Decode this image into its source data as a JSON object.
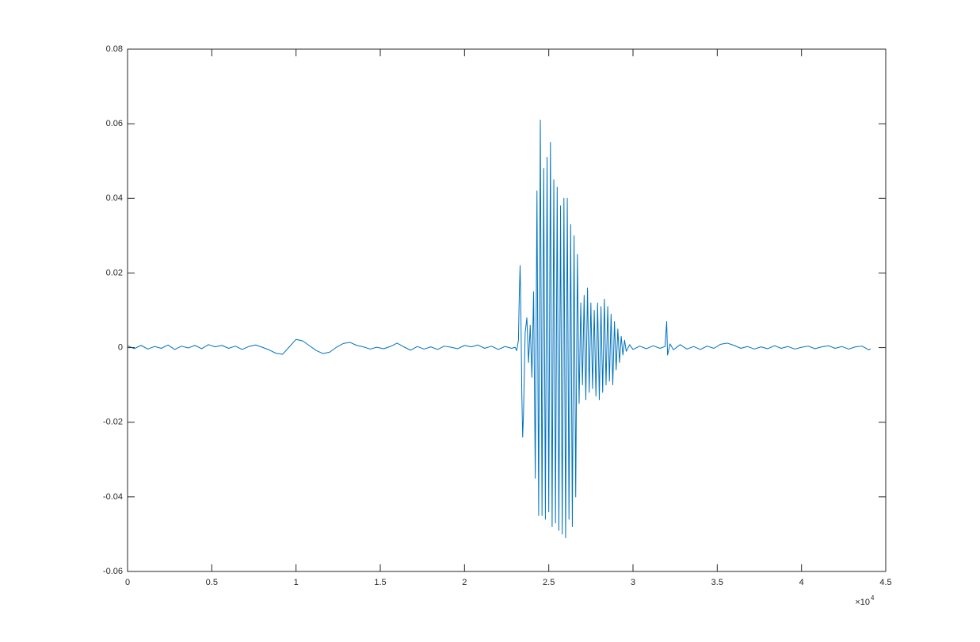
{
  "chart_data": {
    "type": "line",
    "color": "#0072bd",
    "grid": false,
    "box": true,
    "xlim": [
      0,
      45000
    ],
    "ylim": [
      -0.06,
      0.08
    ],
    "xticks": [
      0,
      {
        "value": 5000,
        "label": "0.5"
      },
      {
        "value": 10000,
        "label": "1"
      },
      {
        "value": 15000,
        "label": "1.5"
      },
      {
        "value": 20000,
        "label": "2"
      },
      {
        "value": 25000,
        "label": "2.5"
      },
      {
        "value": 30000,
        "label": "3"
      },
      {
        "value": 35000,
        "label": "3.5"
      },
      {
        "value": 40000,
        "label": "4"
      },
      {
        "value": 45000,
        "label": "4.5"
      }
    ],
    "yticks": [
      -0.06,
      -0.04,
      -0.02,
      0,
      0.02,
      0.04,
      0.06,
      0.08
    ],
    "x_exponent": {
      "base": "×10",
      "power": "4"
    },
    "x": [
      0,
      400,
      800,
      1200,
      1600,
      2000,
      2400,
      2800,
      3200,
      3600,
      4000,
      4400,
      4800,
      5200,
      5600,
      6000,
      6400,
      6800,
      7200,
      7600,
      8000,
      8400,
      8800,
      9200,
      9600,
      10000,
      10400,
      10800,
      11200,
      11600,
      12000,
      12400,
      12800,
      13200,
      13600,
      14000,
      14400,
      14800,
      15200,
      15600,
      16000,
      16400,
      16800,
      17200,
      17600,
      18000,
      18400,
      18800,
      19200,
      19600,
      20000,
      20400,
      20800,
      21200,
      21600,
      22000,
      22400,
      22800,
      23000,
      23100,
      23200,
      23250,
      23300,
      23350,
      23400,
      23450,
      23500,
      23600,
      23700,
      23800,
      23900,
      24000,
      24100,
      24200,
      24300,
      24400,
      24500,
      24600,
      24700,
      24800,
      24900,
      25000,
      25100,
      25200,
      25300,
      25400,
      25500,
      25600,
      25700,
      25800,
      25900,
      26000,
      26100,
      26200,
      26300,
      26400,
      26500,
      26600,
      26700,
      26800,
      26900,
      27000,
      27100,
      27200,
      27300,
      27400,
      27500,
      27600,
      27700,
      27800,
      27900,
      28000,
      28100,
      28200,
      28300,
      28400,
      28500,
      28600,
      28700,
      28800,
      28900,
      29000,
      29100,
      29200,
      29300,
      29400,
      29500,
      29600,
      29800,
      30000,
      30400,
      30800,
      31200,
      31600,
      31900,
      32000,
      32050,
      32200,
      32400,
      32800,
      33200,
      33600,
      34000,
      34400,
      34800,
      35200,
      35600,
      36000,
      36400,
      36800,
      37200,
      37600,
      38000,
      38400,
      38800,
      39200,
      39600,
      40000,
      40400,
      40800,
      41200,
      41600,
      42000,
      42400,
      42800,
      43200,
      43600,
      44000,
      44100
    ],
    "values": [
      0.0005,
      -0.0003,
      0.0006,
      -0.0004,
      0.0003,
      -0.0002,
      0.0007,
      -0.0005,
      0.0004,
      -0.0001,
      0.0006,
      -0.0003,
      0.0008,
      0.0002,
      0.0006,
      -0.0002,
      0.0004,
      -0.0005,
      0.0003,
      0.0007,
      0.0001,
      -0.0006,
      -0.0015,
      -0.0018,
      0.0002,
      0.0022,
      0.0018,
      0.0005,
      -0.0008,
      -0.0016,
      -0.0012,
      0.0001,
      0.0011,
      0.0014,
      0.0006,
      0.0002,
      -0.0004,
      0.0001,
      -0.0003,
      0.0003,
      0.0012,
      0.0002,
      -0.0007,
      0.0003,
      -0.0004,
      0.0002,
      -0.0005,
      0.0004,
      0.0001,
      -0.0003,
      0.0006,
      0.0002,
      0.0007,
      -0.0002,
      0.0004,
      -0.0005,
      0.0003,
      -0.0002,
      0.0001,
      -0.0008,
      0.002,
      0.014,
      0.022,
      0.008,
      -0.012,
      -0.024,
      -0.018,
      0.004,
      0.008,
      -0.004,
      0.006,
      -0.008,
      0.015,
      -0.035,
      0.042,
      -0.045,
      0.061,
      -0.045,
      0.048,
      -0.046,
      0.051,
      -0.044,
      0.055,
      -0.048,
      0.045,
      -0.047,
      0.043,
      -0.049,
      0.038,
      -0.05,
      0.04,
      -0.051,
      0.04,
      -0.046,
      0.033,
      -0.048,
      0.03,
      -0.04,
      0.025,
      -0.015,
      0.012,
      -0.01,
      0.014,
      -0.014,
      0.016,
      -0.012,
      0.012,
      -0.011,
      0.01,
      -0.013,
      0.012,
      -0.014,
      0.011,
      -0.012,
      0.013,
      -0.01,
      0.011,
      -0.009,
      0.009,
      -0.01,
      0.007,
      -0.006,
      0.005,
      -0.004,
      0.003,
      -0.002,
      0.002,
      -0.001,
      0.0008,
      -0.0005,
      0.0004,
      -0.0003,
      0.0005,
      -0.0002,
      0.0003,
      0.007,
      -0.002,
      0.001,
      -0.0006,
      0.0008,
      -0.0004,
      0.0003,
      -0.0005,
      0.0004,
      -0.0002,
      0.0009,
      0.0012,
      0.0006,
      -0.0002,
      0.0003,
      -0.0004,
      0.0002,
      -0.0003,
      0.0005,
      -0.0002,
      0.0003,
      -0.0004,
      0.0001,
      0.0004,
      -0.0003,
      0.0002,
      0.0005,
      -0.0002,
      0.0003,
      -0.0004,
      0.0002,
      0.0004,
      -0.0006,
      -0.0003
    ]
  }
}
